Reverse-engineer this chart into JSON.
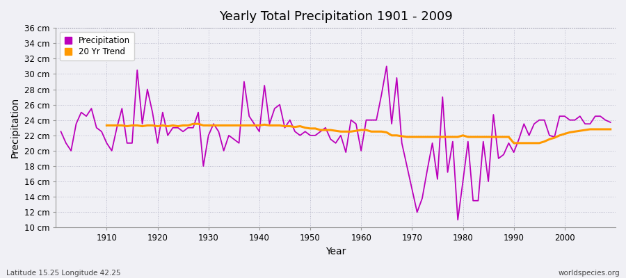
{
  "title": "Yearly Total Precipitation 1901 - 2009",
  "xlabel": "Year",
  "ylabel": "Precipitation",
  "subtitle_left": "Latitude 15.25 Longitude 42.25",
  "subtitle_right": "worldspecies.org",
  "ylim": [
    10,
    36
  ],
  "yticks": [
    10,
    12,
    14,
    16,
    18,
    20,
    22,
    24,
    26,
    28,
    30,
    32,
    34,
    36
  ],
  "ytick_labels": [
    "10 cm",
    "12 cm",
    "14 cm",
    "16 cm",
    "18 cm",
    "20 cm",
    "22 cm",
    "24 cm",
    "26 cm",
    "28 cm",
    "30 cm",
    "32 cm",
    "34 cm",
    "36 cm"
  ],
  "xlim": [
    1900,
    2010
  ],
  "xticks": [
    1910,
    1920,
    1930,
    1940,
    1950,
    1960,
    1970,
    1980,
    1990,
    2000
  ],
  "bg_color": "#f0f0f5",
  "plot_bg_color": "#f0f0f5",
  "precip_color": "#bb00bb",
  "trend_color": "#ff9900",
  "precip_linewidth": 1.3,
  "trend_linewidth": 2.2,
  "years": [
    1901,
    1902,
    1903,
    1904,
    1905,
    1906,
    1907,
    1908,
    1909,
    1910,
    1911,
    1912,
    1913,
    1914,
    1915,
    1916,
    1917,
    1918,
    1919,
    1920,
    1921,
    1922,
    1923,
    1924,
    1925,
    1926,
    1927,
    1928,
    1929,
    1930,
    1931,
    1932,
    1933,
    1934,
    1935,
    1936,
    1937,
    1938,
    1939,
    1940,
    1941,
    1942,
    1943,
    1944,
    1945,
    1946,
    1947,
    1948,
    1949,
    1950,
    1951,
    1952,
    1953,
    1954,
    1955,
    1956,
    1957,
    1958,
    1959,
    1960,
    1961,
    1962,
    1963,
    1964,
    1965,
    1966,
    1967,
    1968,
    1969,
    1970,
    1971,
    1972,
    1973,
    1974,
    1975,
    1976,
    1977,
    1978,
    1979,
    1980,
    1981,
    1982,
    1983,
    1984,
    1985,
    1986,
    1987,
    1988,
    1989,
    1990,
    1991,
    1992,
    1993,
    1994,
    1995,
    1996,
    1997,
    1998,
    1999,
    2000,
    2001,
    2002,
    2003,
    2004,
    2005,
    2006,
    2007,
    2008,
    2009
  ],
  "precip": [
    22.5,
    21.0,
    20.0,
    23.5,
    25.0,
    24.5,
    25.5,
    23.0,
    22.5,
    21.0,
    20.0,
    23.0,
    25.5,
    21.0,
    21.0,
    30.5,
    23.5,
    28.0,
    25.0,
    21.0,
    25.0,
    22.0,
    23.0,
    23.0,
    22.5,
    23.0,
    23.0,
    25.0,
    18.0,
    22.0,
    23.5,
    22.5,
    20.0,
    22.0,
    21.5,
    21.0,
    29.0,
    24.5,
    23.5,
    22.5,
    28.5,
    23.5,
    25.5,
    26.0,
    23.0,
    24.0,
    22.5,
    22.0,
    22.5,
    22.0,
    22.0,
    22.5,
    23.0,
    21.5,
    21.0,
    22.0,
    19.8,
    24.0,
    23.5,
    20.0,
    24.0,
    24.0,
    24.0,
    27.3,
    31.0,
    23.5,
    29.5,
    21.0,
    18.0,
    15.0,
    12.0,
    13.8,
    17.5,
    21.0,
    16.3,
    27.0,
    17.2,
    21.2,
    11.0,
    16.0,
    21.2,
    13.5,
    13.5,
    21.2,
    16.0,
    24.7,
    19.0,
    19.5,
    21.0,
    19.8,
    21.5,
    23.5,
    22.0,
    23.5,
    24.0,
    24.0,
    22.0,
    21.8,
    24.5,
    24.5,
    24.0,
    24.0,
    24.5,
    23.5,
    23.5,
    24.5,
    24.5,
    24.0,
    23.7
  ],
  "trend_years": [
    1910,
    1911,
    1912,
    1913,
    1914,
    1915,
    1916,
    1917,
    1918,
    1919,
    1920,
    1921,
    1922,
    1923,
    1924,
    1925,
    1926,
    1927,
    1928,
    1929,
    1930,
    1931,
    1932,
    1933,
    1934,
    1935,
    1936,
    1937,
    1938,
    1939,
    1940,
    1941,
    1942,
    1943,
    1944,
    1945,
    1946,
    1947,
    1948,
    1949,
    1950,
    1951,
    1952,
    1953,
    1954,
    1955,
    1956,
    1957,
    1958,
    1959,
    1960,
    1961,
    1962,
    1963,
    1964,
    1965,
    1966,
    1967,
    1968,
    1969,
    1970,
    1971,
    1972,
    1973,
    1974,
    1975,
    1976,
    1977,
    1978,
    1979,
    1980,
    1981,
    1982,
    1983,
    1984,
    1985,
    1986,
    1987,
    1988,
    1989,
    1990,
    1991,
    1992,
    1993,
    1994,
    1995,
    1996,
    1997,
    1998,
    1999,
    2000,
    2001,
    2002,
    2003,
    2004,
    2005,
    2006,
    2007,
    2008,
    2009
  ],
  "trend": [
    23.3,
    23.3,
    23.3,
    23.3,
    23.2,
    23.3,
    23.3,
    23.2,
    23.3,
    23.3,
    23.2,
    23.3,
    23.2,
    23.3,
    23.2,
    23.3,
    23.3,
    23.5,
    23.5,
    23.3,
    23.3,
    23.3,
    23.3,
    23.3,
    23.3,
    23.3,
    23.3,
    23.3,
    23.3,
    23.3,
    23.3,
    23.4,
    23.3,
    23.3,
    23.3,
    23.2,
    23.2,
    23.1,
    23.2,
    23.0,
    22.9,
    22.9,
    22.7,
    22.7,
    22.7,
    22.6,
    22.5,
    22.5,
    22.5,
    22.6,
    22.7,
    22.7,
    22.5,
    22.5,
    22.5,
    22.4,
    22.0,
    22.0,
    21.9,
    21.8,
    21.8,
    21.8,
    21.8,
    21.8,
    21.8,
    21.8,
    21.8,
    21.8,
    21.8,
    21.8,
    22.0,
    21.8,
    21.8,
    21.8,
    21.8,
    21.8,
    21.8,
    21.8,
    21.8,
    21.8,
    21.0,
    21.0,
    21.0,
    21.0,
    21.0,
    21.0,
    21.2,
    21.5,
    21.7,
    22.0,
    22.2,
    22.4,
    22.5,
    22.6,
    22.7,
    22.8,
    22.8,
    22.8,
    22.8,
    22.8
  ]
}
